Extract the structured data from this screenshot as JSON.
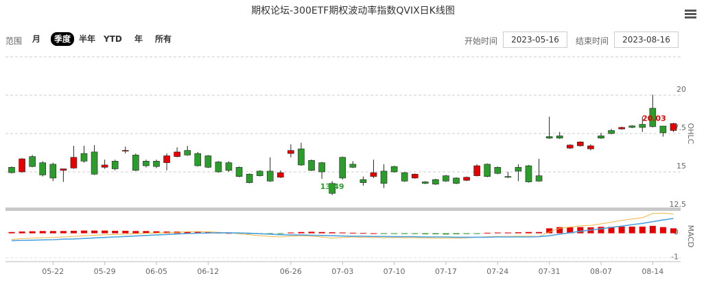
{
  "header": {
    "title": "期权论坛-300ETF期权波动率指数QVIX日K线图"
  },
  "range": {
    "label": "范围",
    "buttons": [
      "月",
      "季度",
      "半年",
      "YTD",
      "年",
      "所有"
    ],
    "selected_index": 1,
    "start_label": "开始时间",
    "start": "2023-05-16",
    "end_label": "结束时间",
    "end": "2023-08-16"
  },
  "chart_data": {
    "type": "candlestick",
    "y_label": "OHLC",
    "categories": [
      null,
      null,
      null,
      null,
      "05-22",
      null,
      null,
      null,
      null,
      "05-29",
      null,
      null,
      null,
      null,
      "06-05",
      null,
      null,
      null,
      null,
      "06-12",
      null,
      null,
      null,
      null,
      null,
      null,
      null,
      "06-26",
      null,
      null,
      null,
      null,
      "07-03",
      null,
      null,
      null,
      null,
      "07-10",
      null,
      null,
      null,
      null,
      "07-17",
      null,
      null,
      null,
      null,
      "07-24",
      null,
      null,
      null,
      null,
      "07-31",
      null,
      null,
      null,
      null,
      "08-07",
      null,
      null,
      null,
      null,
      "08-14",
      null,
      null
    ],
    "open": [
      15.3,
      15.0,
      16.0,
      15.6,
      15.5,
      15.1,
      15.25,
      16.2,
      16.3,
      15.3,
      15.7,
      16.35,
      16.1,
      15.7,
      15.7,
      15.6,
      16.0,
      16.4,
      16.2,
      16.05,
      15.65,
      15.6,
      15.3,
      14.85,
      15.05,
      15.05,
      14.65,
      16.2,
      16.5,
      15.75,
      15.6,
      14.25,
      15.95,
      15.5,
      14.5,
      14.7,
      15.05,
      15.35,
      14.95,
      14.6,
      14.35,
      14.5,
      14.75,
      14.6,
      14.45,
      14.75,
      15.5,
      15.3,
      14.7,
      15.3,
      15.4,
      14.75,
      17.3,
      17.35,
      16.55,
      16.7,
      16.5,
      17.35,
      17.7,
      17.8,
      18.0,
      18.1,
      19.15,
      17.99,
      17.7
    ],
    "high": [
      15.35,
      15.9,
      16.1,
      15.7,
      15.6,
      15.2,
      16.7,
      16.7,
      16.75,
      15.8,
      15.8,
      16.65,
      16.2,
      15.8,
      15.8,
      16.2,
      16.6,
      16.7,
      16.3,
      16.1,
      15.7,
      15.7,
      15.35,
      14.9,
      15.1,
      15.95,
      15.1,
      16.8,
      16.9,
      15.8,
      15.65,
      14.4,
      16.0,
      15.7,
      14.7,
      15.8,
      15.5,
      15.4,
      15.0,
      14.9,
      14.4,
      14.55,
      14.8,
      14.65,
      14.7,
      15.5,
      15.55,
      15.35,
      15.0,
      15.5,
      15.45,
      15.85,
      18.6,
      17.6,
      16.8,
      17.0,
      16.8,
      17.55,
      17.8,
      17.95,
      18.05,
      18.6,
      20.03,
      18.0,
      18.2
    ],
    "low": [
      14.9,
      14.95,
      15.3,
      14.7,
      14.4,
      14.35,
      15.2,
      15.6,
      14.8,
      15.2,
      15.1,
      16.2,
      15.05,
      15.3,
      15.25,
      15.1,
      15.95,
      16.05,
      15.35,
      15.25,
      14.95,
      15.0,
      14.65,
      14.25,
      14.7,
      14.35,
      14.6,
      15.95,
      15.4,
      15.05,
      14.55,
      13.49,
      14.5,
      15.25,
      14.1,
      14.6,
      13.95,
      14.95,
      14.35,
      14.55,
      14.2,
      14.15,
      14.35,
      14.2,
      14.4,
      14.7,
      14.65,
      14.85,
      14.6,
      14.4,
      14.3,
      14.35,
      17.15,
      17.15,
      16.5,
      16.65,
      16.4,
      17.15,
      17.45,
      17.75,
      17.85,
      17.6,
      17.9,
      17.3,
      17.6
    ],
    "close": [
      14.95,
      15.85,
      15.35,
      14.8,
      14.6,
      15.2,
      15.95,
      15.7,
      14.85,
      15.45,
      15.2,
      16.4,
      15.1,
      15.4,
      15.35,
      16.05,
      16.3,
      16.1,
      15.4,
      15.3,
      15.0,
      15.1,
      14.7,
      14.3,
      14.75,
      14.4,
      14.95,
      16.4,
      15.45,
      15.1,
      15.0,
      13.6,
      14.6,
      15.3,
      14.3,
      14.95,
      14.25,
      15.0,
      14.4,
      14.85,
      14.25,
      14.2,
      14.4,
      14.25,
      14.65,
      15.4,
      14.7,
      14.9,
      14.65,
      15.05,
      14.35,
      14.4,
      17.2,
      17.2,
      16.75,
      16.95,
      16.7,
      17.2,
      17.5,
      17.9,
      17.9,
      17.9,
      17.95,
      17.55,
      18.15
    ],
    "up_color": "#e60000",
    "down_color": "#2a9d2a",
    "ylim": [
      12.5,
      22.5
    ],
    "yticks": [
      12.5,
      15,
      17.5,
      20
    ],
    "grid": true,
    "macd": {
      "label": "MACD",
      "ylim": [
        -1.15,
        0.85
      ],
      "yticks": [
        -1,
        0
      ],
      "dif_color": "#f2b640",
      "dea_color": "#4aa3e0",
      "dif": [
        -0.25,
        -0.22,
        -0.2,
        -0.18,
        -0.17,
        -0.15,
        -0.13,
        -0.1,
        -0.08,
        -0.06,
        -0.05,
        -0.03,
        -0.02,
        0,
        0.01,
        0.02,
        0.04,
        0.06,
        0.07,
        0.06,
        0.04,
        0.02,
        -0.02,
        -0.06,
        -0.1,
        -0.13,
        -0.15,
        -0.12,
        -0.1,
        -0.12,
        -0.15,
        -0.2,
        -0.17,
        -0.15,
        -0.17,
        -0.17,
        -0.18,
        -0.17,
        -0.18,
        -0.18,
        -0.19,
        -0.2,
        -0.2,
        -0.2,
        -0.19,
        -0.16,
        -0.14,
        -0.13,
        -0.13,
        -0.12,
        -0.12,
        -0.13,
        0.05,
        0.2,
        0.25,
        0.3,
        0.32,
        0.38,
        0.45,
        0.52,
        0.58,
        0.63,
        0.8,
        0.82,
        0.78
      ],
      "dea": [
        -0.3,
        -0.29,
        -0.28,
        -0.27,
        -0.26,
        -0.24,
        -0.23,
        -0.21,
        -0.19,
        -0.17,
        -0.15,
        -0.13,
        -0.11,
        -0.09,
        -0.07,
        -0.05,
        -0.03,
        -0.01,
        0,
        0.01,
        0.02,
        0.02,
        0.01,
        0,
        -0.02,
        -0.04,
        -0.06,
        -0.07,
        -0.07,
        -0.08,
        -0.09,
        -0.1,
        -0.11,
        -0.12,
        -0.12,
        -0.13,
        -0.13,
        -0.14,
        -0.14,
        -0.14,
        -0.15,
        -0.15,
        -0.15,
        -0.16,
        -0.16,
        -0.16,
        -0.16,
        -0.15,
        -0.15,
        -0.15,
        -0.15,
        -0.14,
        -0.1,
        -0.04,
        0.02,
        0.08,
        0.13,
        0.18,
        0.24,
        0.29,
        0.35,
        0.4,
        0.47,
        0.54,
        0.6
      ],
      "hist": [
        0.05,
        0.07,
        0.08,
        0.09,
        0.09,
        0.09,
        0.1,
        0.11,
        0.11,
        0.11,
        0.1,
        0.1,
        0.09,
        0.09,
        0.08,
        0.07,
        0.07,
        0.07,
        0.07,
        0.05,
        0.02,
        0.01,
        -0.02,
        -0.03,
        -0.04,
        -0.03,
        -0.02,
        0.03,
        0.05,
        0.06,
        0.05,
        0.04,
        0.03,
        0.02,
        0.01,
        0,
        -0.01,
        -0.02,
        -0.03,
        -0.03,
        -0.04,
        -0.04,
        -0.05,
        -0.04,
        -0.03,
        -0.01,
        0.02,
        0.03,
        0.03,
        0.04,
        0.05,
        0.05,
        0.2,
        0.25,
        0.24,
        0.25,
        0.24,
        0.26,
        0.26,
        0.27,
        0.27,
        0.27,
        0.3,
        0.25,
        0.2
      ]
    }
  }
}
